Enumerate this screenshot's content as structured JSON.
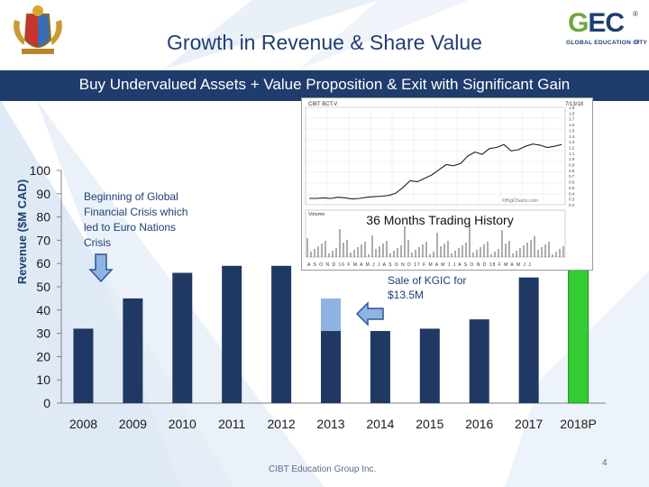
{
  "header": {
    "title": "Growth in Revenue & Share Value",
    "banner": "Buy Undervalued Assets + Value Proposition & Exit with Significant Gain",
    "logo_text": "GEC",
    "logo_sub": "GLOBAL EDUCATION CITY",
    "registered_mark": "®"
  },
  "colors": {
    "title": "#1e3f73",
    "banner": "#1f3c6c",
    "bar": "#1f3864",
    "bar_highlight": "#8eb4e3",
    "bar_projected": "#33cc33",
    "logo_green": "#6aa93a",
    "logo_blue": "#1e3f73"
  },
  "chart_data": {
    "type": "bar",
    "ylabel": "Revenue ($M CAD)",
    "xlabel": "",
    "ylim": [
      0,
      100
    ],
    "yticks": [
      0,
      10,
      20,
      30,
      40,
      50,
      60,
      70,
      80,
      90,
      100
    ],
    "categories": [
      "2008",
      "2009",
      "2010",
      "2011",
      "2012",
      "2013",
      "2014",
      "2015",
      "2016",
      "2017",
      "2018P"
    ],
    "values": [
      32,
      45,
      56,
      59,
      59,
      31,
      31,
      32,
      36,
      54,
      84
    ],
    "stacked_addition": {
      "category": "2013",
      "value": 14
    },
    "projected_category": "2018P",
    "grid": false
  },
  "annotations": {
    "crisis_note": "Beginning of Global Financial Crisis which led to Euro Nations Crisis",
    "sale_note": "Sale of KGIC for $13.5M",
    "inset_label": "36 Months Trading History"
  },
  "inset": {
    "title": "CIBT BCT.V",
    "watermark": "©BigCharts.com",
    "date": "7/13/18",
    "volume_label": "Volume",
    "axis_months": "A S O N D 16 F M A M J J A S O N D 17 F M A M J J A S O N D 18 F M A M J J",
    "price_ticks": [
      "1.9",
      "1.8",
      "1.7",
      "1.6",
      "1.5",
      "1.4",
      "1.3",
      "1.2",
      "1.1",
      "1.0",
      "0.9",
      "0.8",
      "0.7",
      "0.6",
      "0.5",
      "0.4",
      "0.3",
      "0.2"
    ],
    "price_series": [
      0.31,
      0.31,
      0.32,
      0.31,
      0.33,
      0.32,
      0.3,
      0.31,
      0.33,
      0.34,
      0.35,
      0.36,
      0.4,
      0.5,
      0.62,
      0.6,
      0.66,
      0.72,
      0.81,
      0.9,
      0.88,
      0.92,
      1.05,
      1.12,
      1.08,
      1.18,
      1.2,
      1.25,
      1.14,
      1.16,
      1.22,
      1.26,
      1.24,
      1.2,
      1.22,
      1.25
    ]
  },
  "footer": {
    "company": "CIBT Education Group Inc.",
    "page": "4"
  }
}
